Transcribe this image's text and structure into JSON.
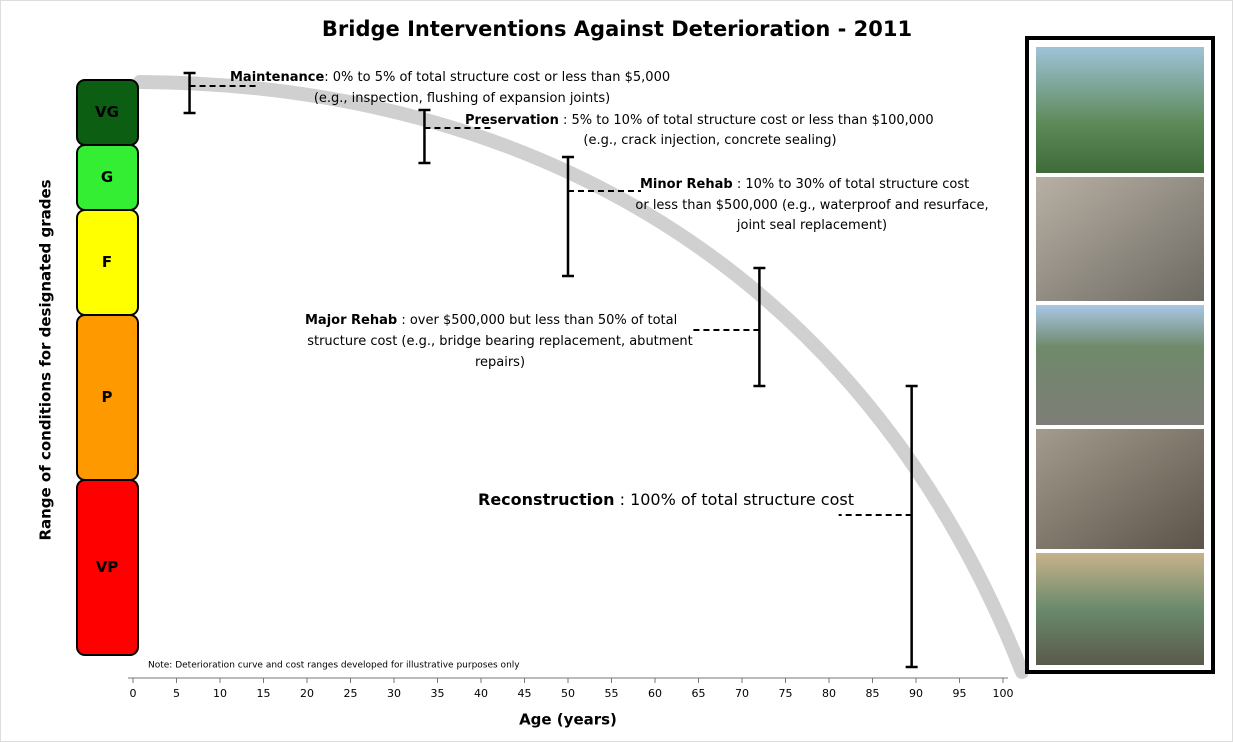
{
  "title": "Bridge Interventions Against Deterioration - 2011",
  "y_axis_label": "Range of conditions for designated grades",
  "grades": [
    {
      "label": "VG",
      "color": "#0b5e12"
    },
    {
      "label": "G",
      "color": "#33ee33"
    },
    {
      "label": "F",
      "color": "#ffff00"
    },
    {
      "label": "P",
      "color": "#ff9900"
    },
    {
      "label": "VP",
      "color": "#ff0000"
    }
  ],
  "x_axis": {
    "label": "Age (years)",
    "xlim": [
      0,
      100
    ],
    "xticks": [
      0,
      5,
      10,
      15,
      20,
      25,
      30,
      35,
      40,
      45,
      50,
      55,
      60,
      65,
      70,
      75,
      80,
      85,
      90,
      95,
      100
    ]
  },
  "interventions": [
    {
      "name": "Maintenance",
      "age": 6.5,
      "lines": [
        ": 0% to 5% of total structure cost or less than $5,000",
        "(e.g., inspection, flushing of expansion joints)"
      ]
    },
    {
      "name": "Preservation",
      "age": 33.5,
      "lines": [
        " : 5% to 10% of total structure cost or less than $100,000",
        "(e.g., crack injection, concrete sealing)"
      ]
    },
    {
      "name": "Minor Rehab",
      "age": 50,
      "lines": [
        " : 10% to 30% of total structure cost",
        "or less than $500,000 (e.g., waterproof and resurface,",
        "joint seal replacement)"
      ]
    },
    {
      "name": "Major Rehab",
      "age": 72,
      "lines": [
        " : over $500,000 but less than 50% of total",
        "structure cost (e.g., bridge bearing replacement, abutment",
        "repairs)"
      ]
    },
    {
      "name": "Reconstruction",
      "age": 89.5,
      "lines": [
        " : 100% of total structure cost"
      ]
    }
  ],
  "note": "Note: Deterioration curve and cost ranges developed for illustrative purposes only"
}
